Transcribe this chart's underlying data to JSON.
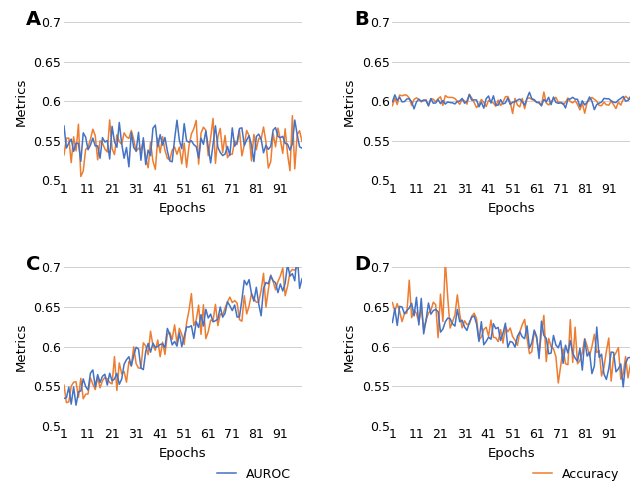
{
  "ylim": [
    0.5,
    0.7
  ],
  "yticks": [
    0.5,
    0.55,
    0.6,
    0.65,
    0.7
  ],
  "xticks": [
    1,
    11,
    21,
    31,
    41,
    51,
    61,
    71,
    81,
    91
  ],
  "xlabel": "Epochs",
  "ylabel": "Metrics",
  "color_auroc": "#4472C4",
  "color_accuracy": "#ED7D31",
  "panel_labels": [
    "A",
    "B",
    "C",
    "D"
  ],
  "legend_auroc": "AUROC",
  "legend_accuracy": "Accuracy",
  "linewidth": 1.1,
  "tick_fontsize": 9,
  "label_fontsize": 9.5,
  "panel_label_fontsize": 14
}
